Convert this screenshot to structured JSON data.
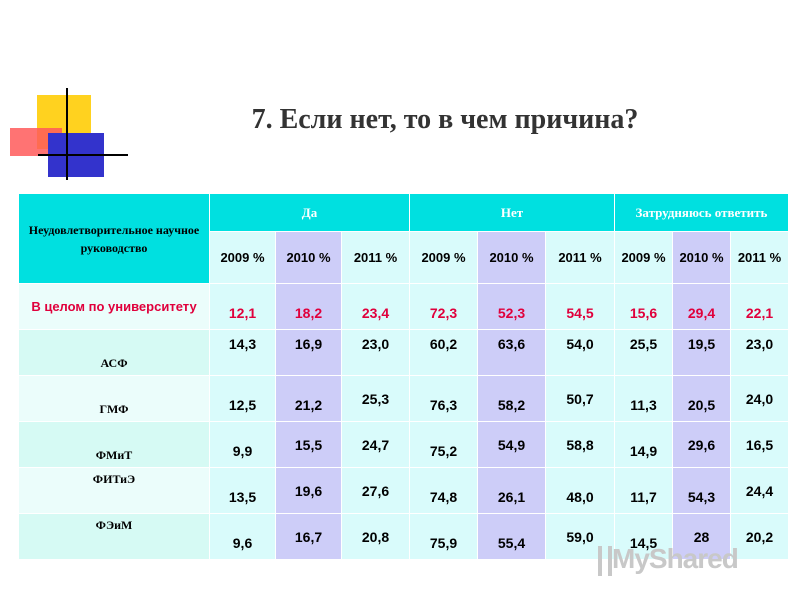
{
  "slide": {
    "title": "7. Если нет, то в чем причина?"
  },
  "table": {
    "corner_label": "Неудовлетворительное научное руководство",
    "groups": [
      "Да",
      "Нет",
      "Затрудняюсь ответить"
    ],
    "years": [
      "2009 %",
      "2010 %",
      "2011 %"
    ],
    "rows": [
      {
        "label": "В целом по университету",
        "values": [
          "12,1",
          "18,2",
          "23,4",
          "72,3",
          "52,3",
          "54,5",
          "15,6",
          "29,4",
          "22,1"
        ]
      },
      {
        "label": "АСФ",
        "values": [
          "14,3",
          "16,9",
          "23,0",
          "60,2",
          "63,6",
          "54,0",
          "25,5",
          "19,5",
          "23,0"
        ]
      },
      {
        "label": "ГМФ",
        "values": [
          "12,5",
          "21,2",
          "25,3",
          "76,3",
          "58,2",
          "50,7",
          "11,3",
          "20,5",
          "24,0"
        ]
      },
      {
        "label": "ФМиТ",
        "values": [
          "9,9",
          "15,5",
          "24,7",
          "75,2",
          "54,9",
          "58,8",
          "14,9",
          "29,6",
          "16,5"
        ]
      },
      {
        "label": "ФИТиЭ",
        "values": [
          "13,5",
          "19,6",
          "27,6",
          "74,8",
          "26,1",
          "48,0",
          "11,7",
          "54,3",
          "24,4"
        ]
      },
      {
        "label": "ФЭиМ",
        "values": [
          "9,6",
          "16,7",
          "20,8",
          "75,9",
          "55,4",
          "59,0",
          "14,5",
          "28",
          "20,2"
        ]
      }
    ]
  },
  "watermark": {
    "text": "MyShared"
  },
  "colors": {
    "header": "#00e0e0",
    "highlight_row": "#e0003c",
    "title": "#333333"
  }
}
